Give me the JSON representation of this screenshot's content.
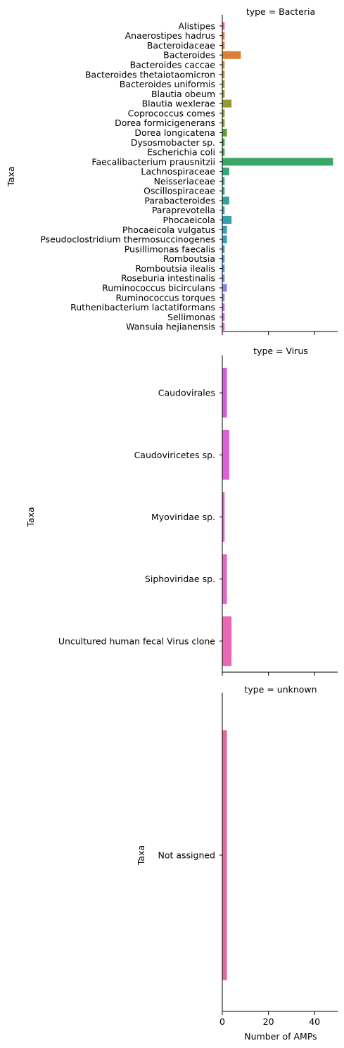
{
  "chart_data": {
    "type": "bar",
    "orientation": "horizontal",
    "xlabel": "Number of AMPs",
    "ylabel": "Taxa",
    "xlim": [
      0,
      50
    ],
    "xticks": [
      0,
      20,
      40
    ],
    "grid": false,
    "legend": "none",
    "panels": [
      {
        "title": "type = Bacteria",
        "categories": [
          "Alistipes",
          "Anaerostipes hadrus",
          "Bacteroidaceae",
          "Bacteroides",
          "Bacteroides caccae",
          "Bacteroides thetaiotaomicron",
          "Bacteroides uniformis",
          "Blautia obeum",
          "Blautia wexlerae",
          "Coprococcus comes",
          "Dorea formicigenerans",
          "Dorea longicatena",
          "Dysosmobacter sp.",
          "Escherichia coli",
          "Faecalibacterium prausnitzii",
          "Lachnospiraceae",
          "Neisseriaceae",
          "Oscillospiraceae",
          "Parabacteroides",
          "Paraprevotella",
          "Phocaeicola",
          "Phocaeicola vulgatus",
          "Pseudoclostridium thermosuccinogenes",
          "Pusillimonas faecalis",
          "Romboutsia",
          "Romboutsia ilealis",
          "Roseburia intestinalis",
          "Ruminococcus bicirculans",
          "Ruminococcus torques",
          "Ruthenibacterium lactatiformans",
          "Sellimonas",
          "Wansuia hejianensis"
        ],
        "values": [
          1,
          1,
          1,
          8,
          1,
          1,
          1,
          1,
          4,
          1,
          1,
          2,
          1,
          1,
          48,
          3,
          1,
          1,
          3,
          1,
          4,
          2,
          2,
          1,
          1,
          1,
          1,
          2,
          1,
          1,
          1,
          1
        ],
        "colors": [
          "#e8677b",
          "#e6734f",
          "#de7b2f",
          "#dc7f34",
          "#c88a33",
          "#b8902f",
          "#a5952f",
          "#94992f",
          "#949a31",
          "#849c30",
          "#6d9f31",
          "#5aa331",
          "#37a535",
          "#39a650",
          "#39a766",
          "#37a678",
          "#36a586",
          "#36a38e",
          "#38a297",
          "#39a1a2",
          "#38a0ac",
          "#3a9fb7",
          "#3b9dc0",
          "#3d9cca",
          "#3f9ad8",
          "#4a8ee6",
          "#6b8aeb",
          "#8a82ec",
          "#a379eb",
          "#bc6ce8",
          "#d85fe2",
          "#e562c7"
        ]
      },
      {
        "title": "type = Virus",
        "categories": [
          "Caudovirales",
          "Caudoviricetes sp.",
          "Myoviridae sp.",
          "Siphoviridae sp.",
          "Uncultured human fecal Virus clone"
        ],
        "values": [
          2,
          3,
          1,
          2,
          4
        ],
        "colors": [
          "#d35fe0",
          "#db62d8",
          "#dc64cf",
          "#e167c0",
          "#e86ab5"
        ]
      },
      {
        "title": "type = unknown",
        "categories": [
          "Not assigned"
        ],
        "values": [
          2
        ],
        "colors": [
          "#e06a9d"
        ]
      }
    ]
  }
}
